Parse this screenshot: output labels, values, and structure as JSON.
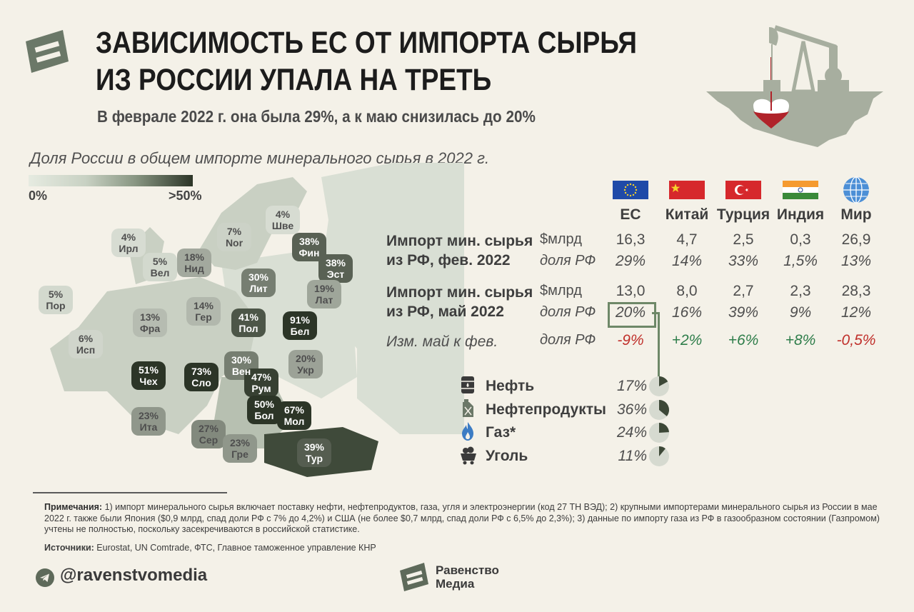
{
  "header": {
    "title_line1": "ЗАВИСИМОСТЬ ЕС ОТ ИМПОРТА СЫРЬЯ",
    "title_line2": "ИЗ РОССИИ УПАЛА НА ТРЕТЬ",
    "subtitle": "В феврале 2022 г. она была 29%, а к маю снизилась до 20%"
  },
  "map": {
    "title": "Доля России в общем импорте минерального сырья в 2022 г.",
    "scale_min": "0%",
    "scale_max": ">50%",
    "colors": {
      "scale_low": "#e6ebe1",
      "scale_high": "#2c3527",
      "non_eu": "#d9dfd4",
      "background": "#f4f1e8"
    }
  },
  "chart_data": [
    {
      "type": "choropleth",
      "title": "Доля России в общем импорте минерального сырья в 2022 г.",
      "legend": {
        "min": "0%",
        "max": ">50%"
      },
      "regions": [
        {
          "code": "Фин",
          "value_label": "38%",
          "value": 38
        },
        {
          "code": "Шве",
          "value_label": "4%",
          "value": 4
        },
        {
          "code": "Nor",
          "value_label": "7%",
          "value": 7
        },
        {
          "code": "Ирл",
          "value_label": "4%",
          "value": 4
        },
        {
          "code": "Вел",
          "value_label": "5%",
          "value": 5
        },
        {
          "code": "Нид",
          "value_label": "18%",
          "value": 18
        },
        {
          "code": "Эст",
          "value_label": "38%",
          "value": 38
        },
        {
          "code": "Лит",
          "value_label": "30%",
          "value": 30
        },
        {
          "code": "Лат",
          "value_label": "19%",
          "value": 19
        },
        {
          "code": "Пор",
          "value_label": "5%",
          "value": 5
        },
        {
          "code": "Гер",
          "value_label": "14%",
          "value": 14
        },
        {
          "code": "Пол",
          "value_label": "41%",
          "value": 41
        },
        {
          "code": "Бел",
          "value_label": "91%",
          "value": 91
        },
        {
          "code": "Фра",
          "value_label": "13%",
          "value": 13
        },
        {
          "code": "Исп",
          "value_label": "6%",
          "value": 6
        },
        {
          "code": "Чех",
          "value_label": "51%",
          "value": 51
        },
        {
          "code": "Слo",
          "value_label": "73%",
          "value": 73
        },
        {
          "code": "Вен",
          "value_label": "30%",
          "value": 30
        },
        {
          "code": "Укр",
          "value_label": "20%",
          "value": 20
        },
        {
          "code": "Рум",
          "value_label": "47%",
          "value": 47
        },
        {
          "code": "Ита",
          "value_label": "23%",
          "value": 23
        },
        {
          "code": "Сер",
          "value_label": "27%",
          "value": 27
        },
        {
          "code": "Бол",
          "value_label": "50%",
          "value": 50
        },
        {
          "code": "Мол",
          "value_label": "67%",
          "value": 67
        },
        {
          "code": "Гре",
          "value_label": "23%",
          "value": 23
        },
        {
          "code": "Тур",
          "value_label": "39%",
          "value": 39
        }
      ]
    },
    {
      "type": "table",
      "columns": [
        "ЕС",
        "Китай",
        "Турция",
        "Индия",
        "Мир"
      ],
      "rows": [
        {
          "label_line1": "Импорт мин. сырья",
          "label_line2": "из РФ, фев. 2022",
          "unit": "$млрд",
          "values": [
            "16,3",
            "4,7",
            "2,5",
            "0,3",
            "26,9"
          ]
        },
        {
          "unit": "доля РФ",
          "values": [
            "29%",
            "14%",
            "33%",
            "1,5%",
            "13%"
          ]
        },
        {
          "label_line1": "Импорт мин. сырья",
          "label_line2": "из РФ, май 2022",
          "unit": "$млрд",
          "values": [
            "13,0",
            "8,0",
            "2,7",
            "2,3",
            "28,3"
          ]
        },
        {
          "unit": "доля РФ",
          "values": [
            "20%",
            "16%",
            "39%",
            "9%",
            "12%"
          ]
        },
        {
          "label": "Изм. май к фев.",
          "unit": "доля РФ",
          "values": [
            "-9%",
            "+2%",
            "+6%",
            "+8%",
            "-0,5%"
          ],
          "colors": [
            "#c0302b",
            "#2e7d4a",
            "#2e7d4a",
            "#2e7d4a",
            "#c0302b"
          ]
        }
      ]
    },
    {
      "type": "pie",
      "title": "",
      "series": [
        {
          "name": "Нефть",
          "value_label": "17%",
          "value": 17,
          "icon": "oil-barrel-icon"
        },
        {
          "name": "Нефтепродукты",
          "value_label": "36%",
          "value": 36,
          "icon": "jerrycan-icon"
        },
        {
          "name": "Газ*",
          "value_label": "24%",
          "value": 24,
          "icon": "gas-flame-icon"
        },
        {
          "name": "Уголь",
          "value_label": "11%",
          "value": 11,
          "icon": "coal-cart-icon"
        }
      ],
      "colors": {
        "slice": "#3d4837",
        "rest": "#d6dad0"
      }
    }
  ],
  "table_ui": {
    "flags": [
      "eu-flag-icon",
      "china-flag-icon",
      "turkey-flag-icon",
      "india-flag-icon",
      "world-globe-icon"
    ],
    "highlight": {
      "row": 3,
      "col": 0,
      "color": "#6e8868"
    }
  },
  "notes": {
    "label": "Примечания:",
    "text": " 1) импорт минерального сырья включает поставку нефти, нефтепродуктов, газа, угля и электроэнергии (код 27 ТН ВЭД); 2) крупными импортерами минерального сырья из России в мае 2022 г. также были Япония ($0,9 млрд, спад доли РФ с 7% до 4,2%) и США (не более $0,7 млрд, спад доли РФ с 6,5% до 2,3%); 3) данные по импорту газа из РФ в газообразном состоянии (Газпромом) учтены не полностью, поскольку засекречиваются в российской статистике."
  },
  "sources": {
    "label": "Источники:",
    "text": " Eurostat, UN Comtrade, ФТС, Главное таможенное управление КНР"
  },
  "footer": {
    "telegram_handle": "@ravenstvomedia",
    "brand_line1": "Равенство",
    "brand_line2": "Медиа"
  }
}
